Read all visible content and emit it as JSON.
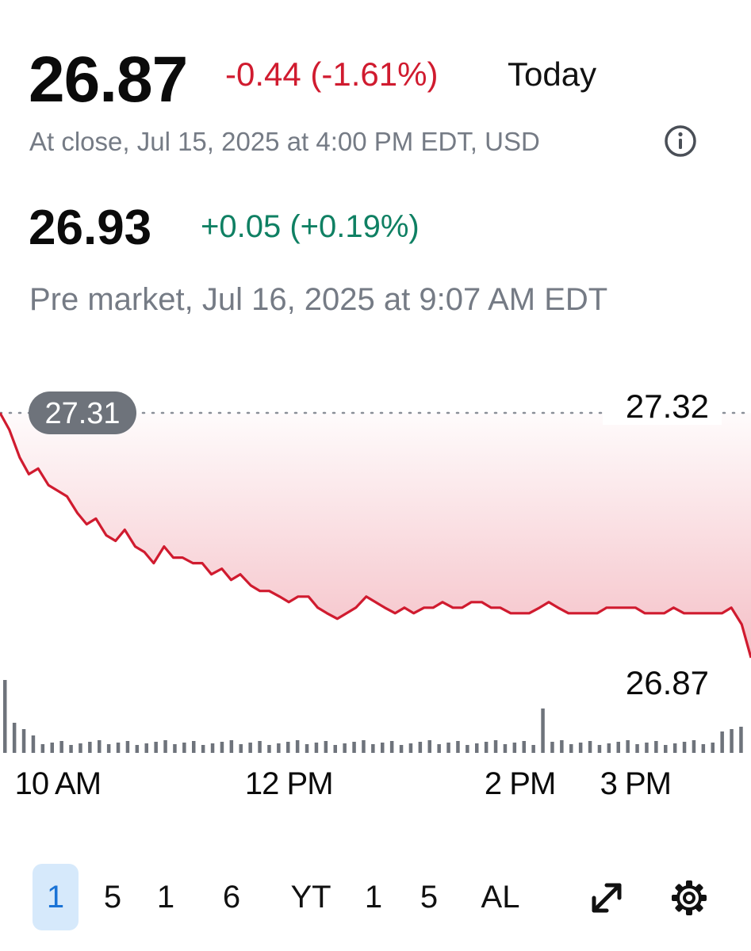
{
  "quote": {
    "price": "26.87",
    "change": "-0.44 (-1.61%)",
    "period": "Today",
    "close_info": "At close, Jul 15, 2025 at 4:00 PM EDT, USD"
  },
  "premarket": {
    "price": "26.93",
    "change": "+0.05 (+0.19%)",
    "info": "Pre market, Jul 16, 2025 at 9:07 AM EDT"
  },
  "colors": {
    "negative": "#d01b2f",
    "positive": "#0f8063",
    "accent": "#1a73d6",
    "muted": "#757b85"
  },
  "icons": {
    "info": "info-circle-icon",
    "expand": "expand-arrows-icon",
    "settings": "gear-icon"
  },
  "chart_data": {
    "type": "line",
    "title": "",
    "xlabel": "",
    "ylabel": "",
    "x_tick_labels": [
      "10 AM",
      "12 PM",
      "2 PM",
      "3 PM"
    ],
    "x_tick_times": [
      10,
      12,
      14,
      15
    ],
    "x_range": [
      9.5,
      16
    ],
    "y_range": [
      26.87,
      27.32
    ],
    "y_labels": [
      "27.32",
      "26.87"
    ],
    "reference_line": {
      "value": 27.31,
      "label": "27.31"
    },
    "series": [
      {
        "t": [
          9.5,
          9.58,
          9.67,
          9.75,
          9.83,
          9.92,
          10.0,
          10.08,
          10.17,
          10.25,
          10.33,
          10.42,
          10.5,
          10.58,
          10.67,
          10.75,
          10.83,
          10.92,
          11.0,
          11.08,
          11.17,
          11.25,
          11.33,
          11.42,
          11.5,
          11.58,
          11.67,
          11.75,
          11.83,
          11.92,
          12.0,
          12.08,
          12.17,
          12.25,
          12.33,
          12.42,
          12.5,
          12.58,
          12.67,
          12.75,
          12.83,
          12.92,
          13.0,
          13.08,
          13.17,
          13.25,
          13.33,
          13.42,
          13.5,
          13.58,
          13.67,
          13.75,
          13.83,
          13.92,
          14.0,
          14.08,
          14.17,
          14.25,
          14.33,
          14.42,
          14.5,
          14.58,
          14.67,
          14.75,
          14.83,
          14.92,
          15.0,
          15.08,
          15.17,
          15.25,
          15.33,
          15.42,
          15.5,
          15.58,
          15.67,
          15.75,
          15.83,
          15.92,
          16.0
        ],
        "values": [
          27.31,
          27.28,
          27.23,
          27.2,
          27.21,
          27.18,
          27.17,
          27.16,
          27.13,
          27.11,
          27.12,
          27.09,
          27.08,
          27.1,
          27.07,
          27.06,
          27.04,
          27.07,
          27.05,
          27.05,
          27.04,
          27.04,
          27.02,
          27.03,
          27.01,
          27.02,
          27.0,
          26.99,
          26.99,
          26.98,
          26.97,
          26.98,
          26.98,
          26.96,
          26.95,
          26.94,
          26.95,
          26.96,
          26.98,
          26.97,
          26.96,
          26.95,
          26.96,
          26.95,
          26.96,
          26.96,
          26.97,
          26.96,
          26.96,
          26.97,
          26.97,
          26.96,
          26.96,
          26.95,
          26.95,
          26.95,
          26.96,
          26.97,
          26.96,
          26.95,
          26.95,
          26.95,
          26.95,
          26.96,
          26.96,
          26.96,
          26.96,
          26.95,
          26.95,
          26.95,
          26.96,
          26.95,
          26.95,
          26.95,
          26.95,
          26.95,
          26.96,
          26.93,
          26.87
        ]
      }
    ]
  },
  "range_buttons": [
    {
      "label": "1",
      "selected": true
    },
    {
      "label": "5",
      "selected": false
    },
    {
      "label": "1",
      "selected": false
    },
    {
      "label": "6",
      "selected": false
    },
    {
      "label": "YT",
      "selected": false
    },
    {
      "label": "1",
      "selected": false
    },
    {
      "label": "5",
      "selected": false
    },
    {
      "label": "AL",
      "selected": false
    }
  ]
}
